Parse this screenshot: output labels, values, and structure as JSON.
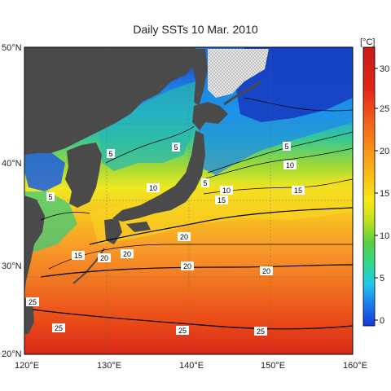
{
  "title": "Daily SSTs 10 Mar. 2010",
  "colorbar": {
    "unit": "[°C]",
    "ticks": [
      "30",
      "25",
      "20",
      "15",
      "10",
      "5",
      "0"
    ],
    "stops": [
      "#1838d8",
      "#1a7ef0",
      "#22c8e8",
      "#30d890",
      "#58d040",
      "#b8e020",
      "#f8e818",
      "#f8b818",
      "#f88818",
      "#f05818",
      "#e02818",
      "#c81818"
    ]
  },
  "axes": {
    "lat_labels": [
      "50°N",
      "40°N",
      "30°N",
      "20°N"
    ],
    "lon_labels": [
      "120°E",
      "130°E",
      "140°E",
      "150°E",
      "160°E"
    ]
  },
  "colors": {
    "land": "#4a4a4a",
    "sea_ice": "#c8c8c8"
  },
  "contour_labels": [
    {
      "text": "5"
    },
    {
      "text": "5"
    },
    {
      "text": "5"
    },
    {
      "text": "5"
    },
    {
      "text": "5"
    },
    {
      "text": "10"
    },
    {
      "text": "10"
    },
    {
      "text": "10"
    },
    {
      "text": "15"
    },
    {
      "text": "15"
    },
    {
      "text": "15"
    },
    {
      "text": "20"
    },
    {
      "text": "20"
    },
    {
      "text": "20"
    },
    {
      "text": "20"
    },
    {
      "text": "20"
    },
    {
      "text": "25"
    },
    {
      "text": "25"
    },
    {
      "text": "25"
    },
    {
      "text": "25"
    }
  ]
}
